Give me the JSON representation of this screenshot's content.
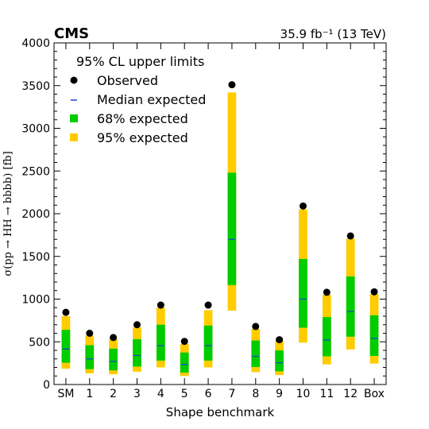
{
  "chart_data": {
    "type": "bar",
    "experiment": "CMS",
    "luminosity": "35.9 fb⁻¹ (13 TeV)",
    "legend_title": "95% CL upper limits",
    "legend_position": "top-left",
    "xlabel": "Shape benchmark",
    "ylabel": "σ(pp → HH → bbbb) [fb]",
    "ylim": [
      0,
      4000
    ],
    "yticks": [
      0,
      500,
      1000,
      1500,
      2000,
      2500,
      3000,
      3500,
      4000
    ],
    "categories": [
      "SM",
      "1",
      "2",
      "3",
      "4",
      "5",
      "6",
      "7",
      "8",
      "9",
      "10",
      "11",
      "12",
      "Box"
    ],
    "series": [
      {
        "name": "Observed",
        "values": [
          845,
          600,
          550,
          700,
          930,
          505,
          930,
          3510,
          680,
          525,
          2090,
          1080,
          1740,
          1085
        ]
      },
      {
        "name": "Median expected",
        "values": [
          415,
          300,
          270,
          340,
          455,
          235,
          455,
          1700,
          330,
          255,
          1000,
          520,
          855,
          540
        ]
      },
      {
        "name": "68% expected",
        "low": [
          255,
          180,
          165,
          210,
          280,
          140,
          280,
          1165,
          205,
          155,
          665,
          330,
          560,
          335
        ],
        "high": [
          640,
          460,
          420,
          530,
          700,
          375,
          690,
          2480,
          515,
          400,
          1470,
          790,
          1265,
          810
        ]
      },
      {
        "name": "95% expected",
        "low": [
          185,
          130,
          120,
          150,
          200,
          100,
          200,
          865,
          145,
          110,
          490,
          235,
          410,
          245
        ],
        "high": [
          800,
          575,
          530,
          670,
          900,
          475,
          870,
          3420,
          650,
          510,
          2050,
          1050,
          1710,
          1060
        ]
      }
    ],
    "colors": {
      "observed": "#000000",
      "median": "#1a3fd6",
      "band68": "#00cc00",
      "band95": "#ffcc00"
    }
  }
}
